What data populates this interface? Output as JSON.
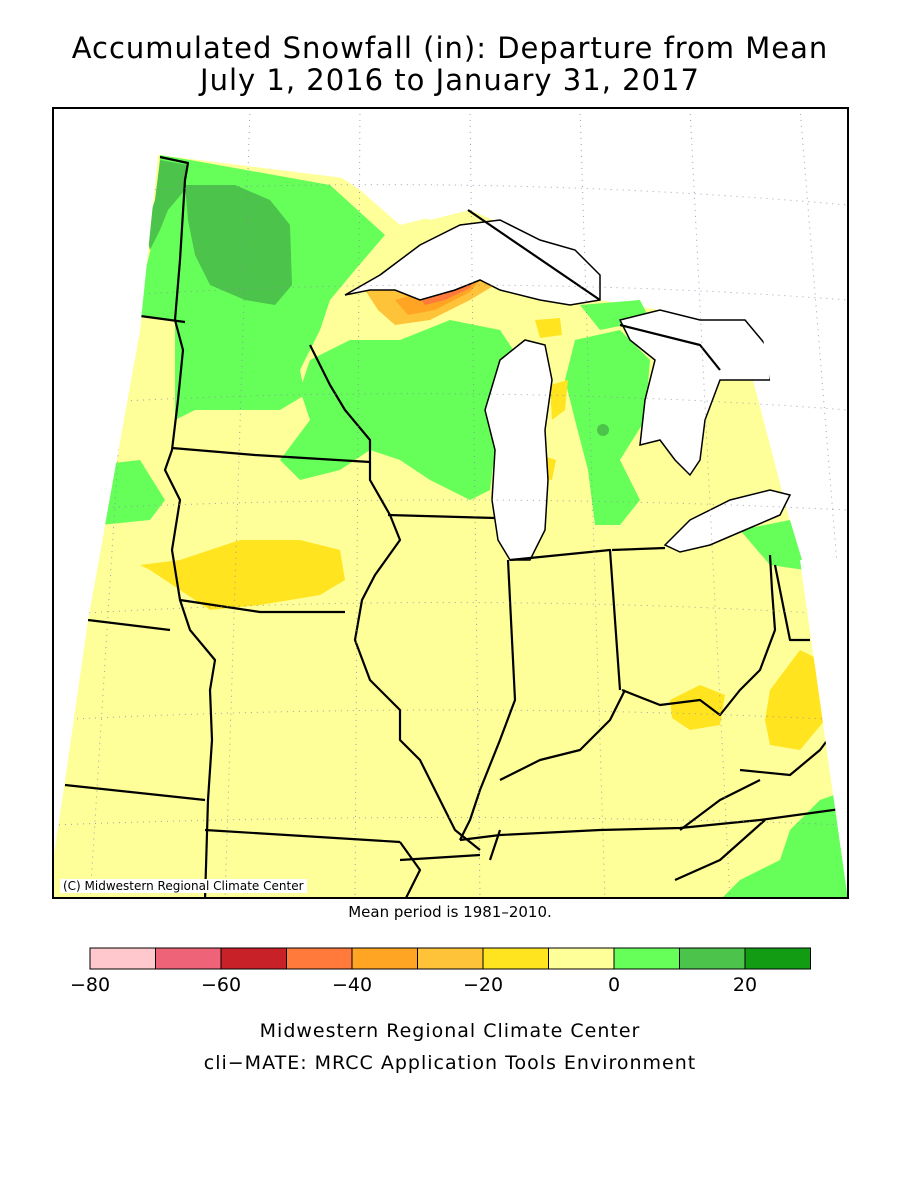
{
  "title_line1": "Accumulated Snowfall (in): Departure from Mean",
  "title_line2": "July 1, 2016 to January 31, 2017",
  "copyright": "(C) Midwestern Regional Climate Center",
  "mean_period": "Mean period is 1981–2010.",
  "legend": {
    "bins": [
      {
        "from": -80,
        "to": -70,
        "color": "#ffc8cc"
      },
      {
        "from": -70,
        "to": -60,
        "color": "#ee6378"
      },
      {
        "from": -60,
        "to": -50,
        "color": "#c92128"
      },
      {
        "from": -50,
        "to": -40,
        "color": "#ff7a3b"
      },
      {
        "from": -40,
        "to": -30,
        "color": "#ffa523"
      },
      {
        "from": -30,
        "to": -20,
        "color": "#ffc33a"
      },
      {
        "from": -20,
        "to": -10,
        "color": "#ffe41f"
      },
      {
        "from": -10,
        "to": 0,
        "color": "#ffff99"
      },
      {
        "from": 0,
        "to": 10,
        "color": "#66ff59"
      },
      {
        "from": 10,
        "to": 20,
        "color": "#4cc34b"
      },
      {
        "from": 20,
        "to": 30,
        "color": "#129c13"
      }
    ],
    "tick_labels": [
      "−80",
      "−60",
      "−40",
      "−20",
      "0",
      "20"
    ]
  },
  "footer_line1": "Midwestern Regional Climate Center",
  "footer_line2": "cli−MATE: MRCC Application Tools Environment",
  "colors": {
    "water": "#ffffff",
    "near_normal": "#ffff99",
    "above_normal": "#66ff59",
    "well_above": "#4cc34b",
    "below": "#ffe41f",
    "far_below": "#ff7a3b",
    "extreme_below": "#c92128"
  }
}
